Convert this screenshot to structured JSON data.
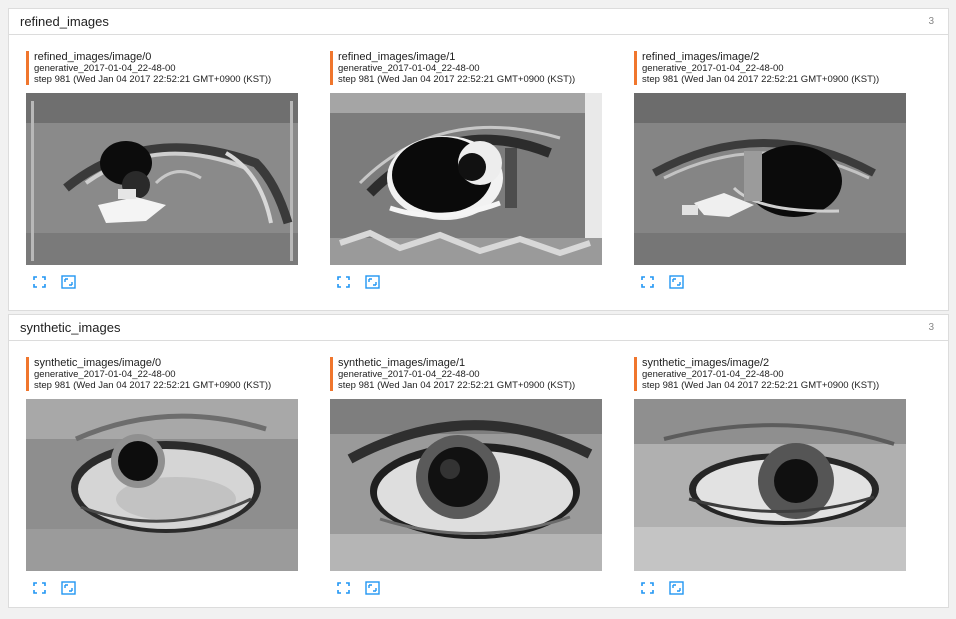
{
  "sections": [
    {
      "title": "refined_images",
      "count": "3",
      "cards": [
        {
          "tag": "refined_images/image/0",
          "run": "generative_2017-01-04_22-48-00",
          "step": "step 981 (Wed Jan 04 2017 22:52:21 GMT+0900 (KST))"
        },
        {
          "tag": "refined_images/image/1",
          "run": "generative_2017-01-04_22-48-00",
          "step": "step 981 (Wed Jan 04 2017 22:52:21 GMT+0900 (KST))"
        },
        {
          "tag": "refined_images/image/2",
          "run": "generative_2017-01-04_22-48-00",
          "step": "step 981 (Wed Jan 04 2017 22:52:21 GMT+0900 (KST))"
        }
      ]
    },
    {
      "title": "synthetic_images",
      "count": "3",
      "cards": [
        {
          "tag": "synthetic_images/image/0",
          "run": "generative_2017-01-04_22-48-00",
          "step": "step 981 (Wed Jan 04 2017 22:52:21 GMT+0900 (KST))"
        },
        {
          "tag": "synthetic_images/image/1",
          "run": "generative_2017-01-04_22-48-00",
          "step": "step 981 (Wed Jan 04 2017 22:52:21 GMT+0900 (KST))"
        },
        {
          "tag": "synthetic_images/image/2",
          "run": "generative_2017-01-04_22-48-00",
          "step": "step 981 (Wed Jan 04 2017 22:52:21 GMT+0900 (KST))"
        }
      ]
    }
  ],
  "icons": {
    "expand": "fullscreen-icon",
    "actual_size": "actual-size-icon"
  },
  "colors": {
    "accent": "#f0762d",
    "icon": "#2196f3"
  }
}
